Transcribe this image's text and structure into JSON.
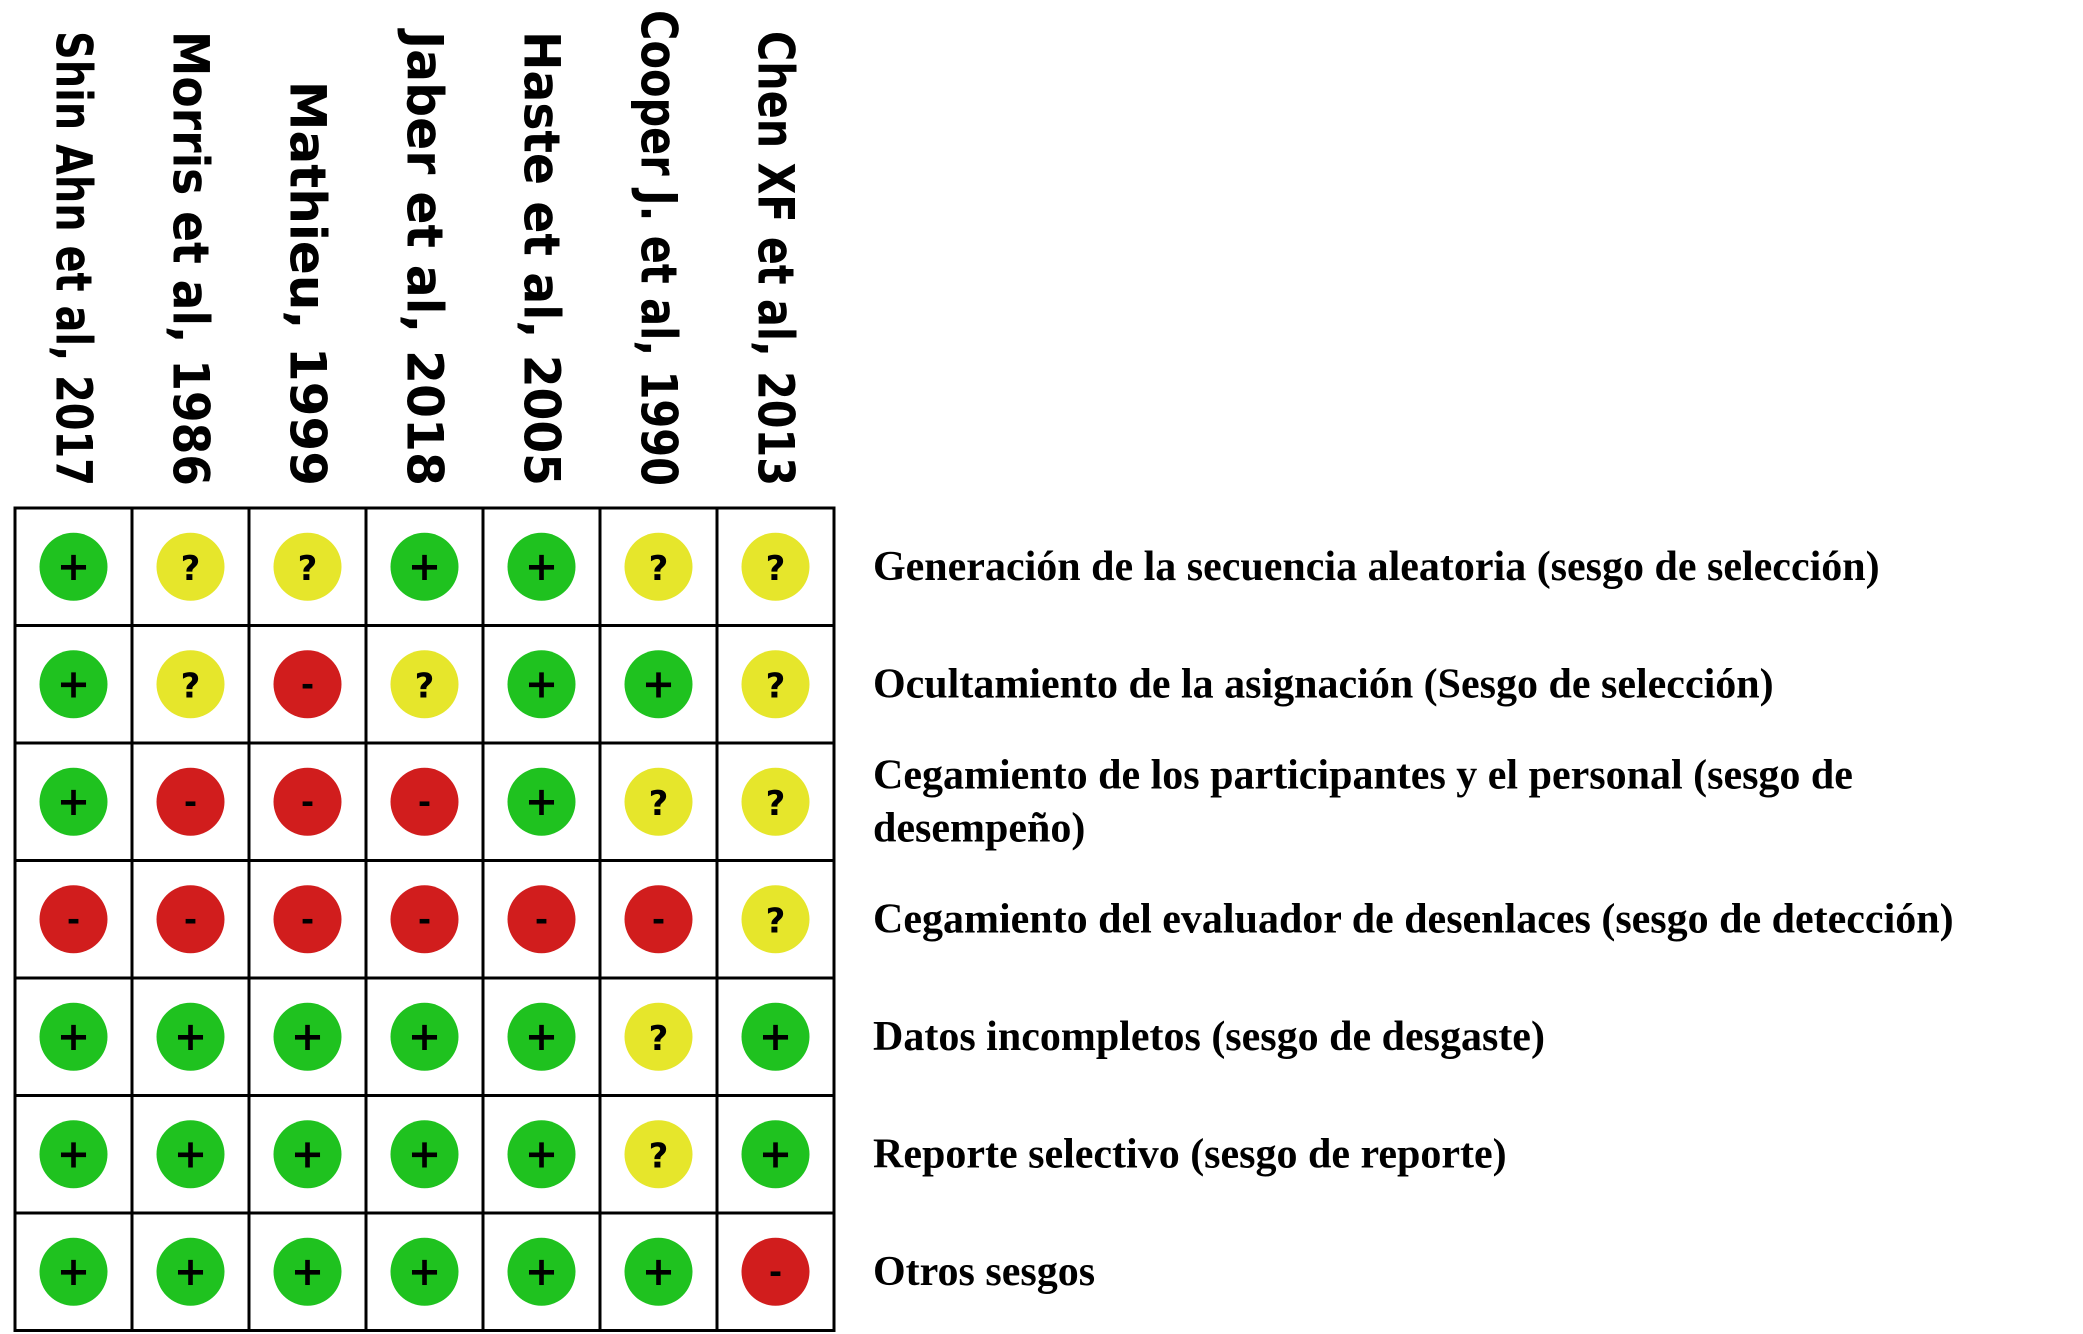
{
  "chart_data": {
    "type": "table",
    "studies": [
      "Shin Ahn et al, 2017",
      "Morris et al, 1986",
      "Mathieu, 1999",
      "Jaber et al, 2018",
      "Haste et al, 2005",
      "Cooper J. et al, 1990",
      "Chen XF et al, 2013"
    ],
    "domains": [
      [
        "Generación de la secuencia aleatoria (sesgo de selección)"
      ],
      [
        "Ocultamiento de la asignación (Sesgo de selección)"
      ],
      [
        "Cegamiento de los participantes y el personal (sesgo de",
        "desempeño)"
      ],
      [
        "Cegamiento del evaluador de desenlaces (sesgo de detección)"
      ],
      [
        "Datos incompletos (sesgo de desgaste)"
      ],
      [
        "Reporte selectivo (sesgo de reporte)"
      ],
      [
        "Otros sesgos"
      ]
    ],
    "judgments": [
      [
        "+",
        "?",
        "?",
        "+",
        "+",
        "?",
        "?"
      ],
      [
        "+",
        "?",
        "-",
        "?",
        "+",
        "+",
        "?"
      ],
      [
        "+",
        "-",
        "-",
        "-",
        "+",
        "?",
        "?"
      ],
      [
        "-",
        "-",
        "-",
        "-",
        "-",
        "-",
        "?"
      ],
      [
        "+",
        "+",
        "+",
        "+",
        "+",
        "?",
        "+"
      ],
      [
        "+",
        "+",
        "+",
        "+",
        "+",
        "?",
        "+"
      ],
      [
        "+",
        "+",
        "+",
        "+",
        "+",
        "+",
        "-"
      ]
    ],
    "judgment_colors": {
      "+": "#1fc21f",
      "?": "#e6e62b",
      "-": "#d11d1d"
    }
  }
}
